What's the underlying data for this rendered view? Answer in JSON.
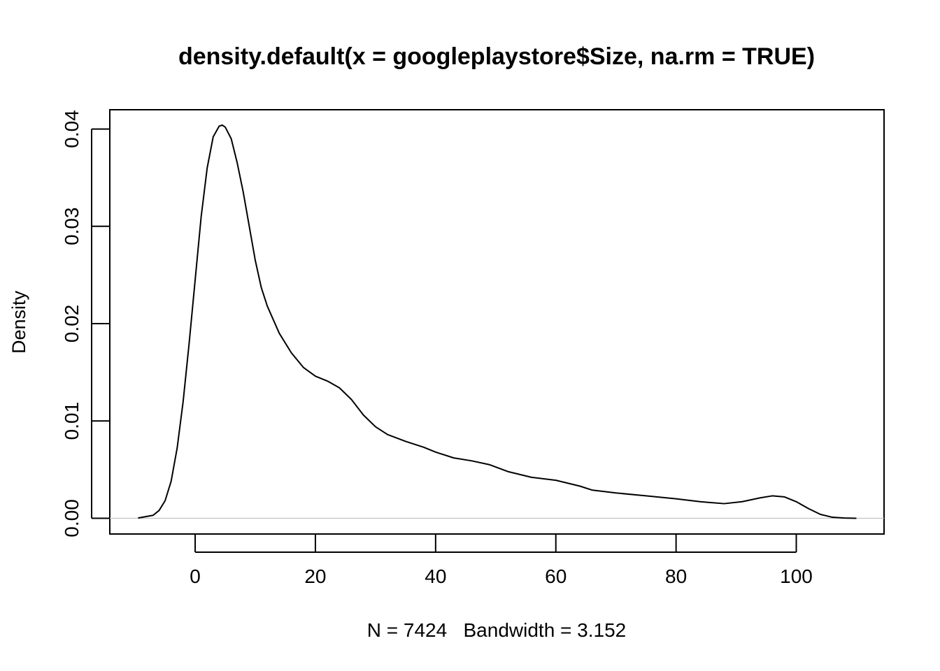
{
  "chart_data": {
    "type": "line",
    "title": "density.default(x = googleplaystore$Size, na.rm = TRUE)",
    "xlabel": "N = 7424   Bandwidth = 3.152",
    "ylabel": "Density",
    "xlim": [
      -14.2,
      114.6
    ],
    "ylim": [
      -0.00162,
      0.04198
    ],
    "x_ticks": [
      0,
      20,
      40,
      60,
      80,
      100
    ],
    "x_tick_labels": [
      "0",
      "20",
      "40",
      "60",
      "80",
      "100"
    ],
    "y_ticks": [
      0.0,
      0.01,
      0.02,
      0.03,
      0.04
    ],
    "y_tick_labels": [
      "0.00",
      "0.01",
      "0.02",
      "0.03",
      "0.04"
    ],
    "baseline": 0,
    "grid": false,
    "line_color": "#000000",
    "baseline_color": "#bebebe",
    "series": [
      {
        "x": [
          -9.5,
          -7,
          -6,
          -5,
          -4,
          -3,
          -2,
          -1,
          0,
          1,
          2,
          3,
          4,
          4.5,
          5,
          6,
          7,
          8,
          9,
          10,
          11,
          12,
          14,
          16,
          18,
          20,
          22,
          24,
          26,
          28,
          30,
          32,
          35,
          38,
          40,
          43,
          46,
          49,
          52,
          56,
          60,
          64,
          66,
          70,
          75,
          80,
          84,
          88,
          91,
          94,
          96,
          98,
          100,
          102,
          104,
          106,
          108,
          110
        ],
        "y": [
          2e-05,
          0.0003,
          0.0008,
          0.0018,
          0.0038,
          0.0072,
          0.012,
          0.018,
          0.0245,
          0.031,
          0.036,
          0.0392,
          0.0403,
          0.0404,
          0.0402,
          0.039,
          0.0365,
          0.0335,
          0.03,
          0.0265,
          0.0237,
          0.0218,
          0.019,
          0.017,
          0.0155,
          0.0146,
          0.0141,
          0.0134,
          0.0122,
          0.0106,
          0.0094,
          0.0086,
          0.0079,
          0.0073,
          0.0068,
          0.0062,
          0.0059,
          0.0055,
          0.0048,
          0.0042,
          0.0039,
          0.0033,
          0.0029,
          0.0026,
          0.0023,
          0.002,
          0.0017,
          0.0015,
          0.0017,
          0.0021,
          0.0023,
          0.0022,
          0.0017,
          0.001,
          0.0004,
          0.0001,
          2e-05,
          0.0
        ]
      }
    ]
  }
}
